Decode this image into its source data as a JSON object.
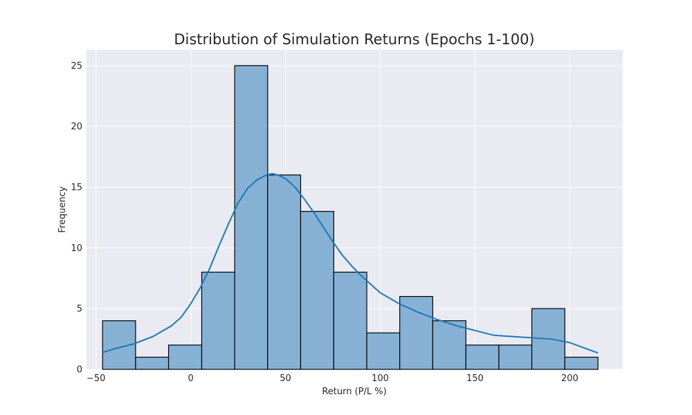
{
  "chart_data": {
    "type": "bar",
    "title": "Distribution of Simulation Returns (Epochs 1-100)",
    "xlabel": "Return (P/L %)",
    "ylabel": "Frequency",
    "xlim": [
      -55,
      228
    ],
    "ylim": [
      0,
      26.3
    ],
    "bins": [
      {
        "x0": -46.5,
        "x1": -29.1,
        "count": 4
      },
      {
        "x0": -29.1,
        "x1": -11.7,
        "count": 1
      },
      {
        "x0": -11.7,
        "x1": 5.8,
        "count": 2
      },
      {
        "x0": 5.8,
        "x1": 23.2,
        "count": 8
      },
      {
        "x0": 23.2,
        "x1": 40.6,
        "count": 25
      },
      {
        "x0": 40.6,
        "x1": 58.0,
        "count": 16
      },
      {
        "x0": 58.0,
        "x1": 75.5,
        "count": 13
      },
      {
        "x0": 75.5,
        "x1": 92.9,
        "count": 8
      },
      {
        "x0": 92.9,
        "x1": 110.3,
        "count": 3
      },
      {
        "x0": 110.3,
        "x1": 127.7,
        "count": 6
      },
      {
        "x0": 127.7,
        "x1": 145.2,
        "count": 4
      },
      {
        "x0": 145.2,
        "x1": 162.6,
        "count": 2
      },
      {
        "x0": 162.6,
        "x1": 180.0,
        "count": 2
      },
      {
        "x0": 180.0,
        "x1": 197.4,
        "count": 5
      },
      {
        "x0": 197.4,
        "x1": 214.9,
        "count": 1
      }
    ],
    "kde": {
      "x": [
        -46.5,
        -40,
        -30,
        -20,
        -10,
        -5,
        0,
        5,
        10,
        15,
        20,
        25,
        30,
        35,
        40,
        43,
        46,
        50,
        55,
        60,
        65,
        70,
        75,
        80,
        85,
        90,
        95,
        100,
        110,
        120,
        130,
        140,
        150,
        160,
        170,
        180,
        190,
        200,
        207,
        214.9
      ],
      "y": [
        1.4,
        1.7,
        2.1,
        2.7,
        3.6,
        4.3,
        5.4,
        6.7,
        8.3,
        10.2,
        12.0,
        13.7,
        14.9,
        15.6,
        16.0,
        16.1,
        16.0,
        15.7,
        15.0,
        14.0,
        12.9,
        11.7,
        10.5,
        9.4,
        8.5,
        7.7,
        7.0,
        6.3,
        5.4,
        4.7,
        4.1,
        3.6,
        3.2,
        2.8,
        2.7,
        2.6,
        2.5,
        2.2,
        1.8,
        1.35
      ]
    },
    "x_ticks": [
      -50,
      0,
      50,
      100,
      150,
      200
    ],
    "y_ticks": [
      0,
      5,
      10,
      15,
      20,
      25
    ],
    "x_tick_labels": [
      "−50",
      "0",
      "50",
      "100",
      "150",
      "200"
    ],
    "y_tick_labels": [
      "0",
      "5",
      "10",
      "15",
      "20",
      "25"
    ],
    "grid": true,
    "colors": {
      "background": "#eaeaf2",
      "bar_fill": "#86b1d5",
      "bar_edge": "#000000",
      "kde_line": "#1f77b4",
      "grid": "#ffffff"
    }
  }
}
